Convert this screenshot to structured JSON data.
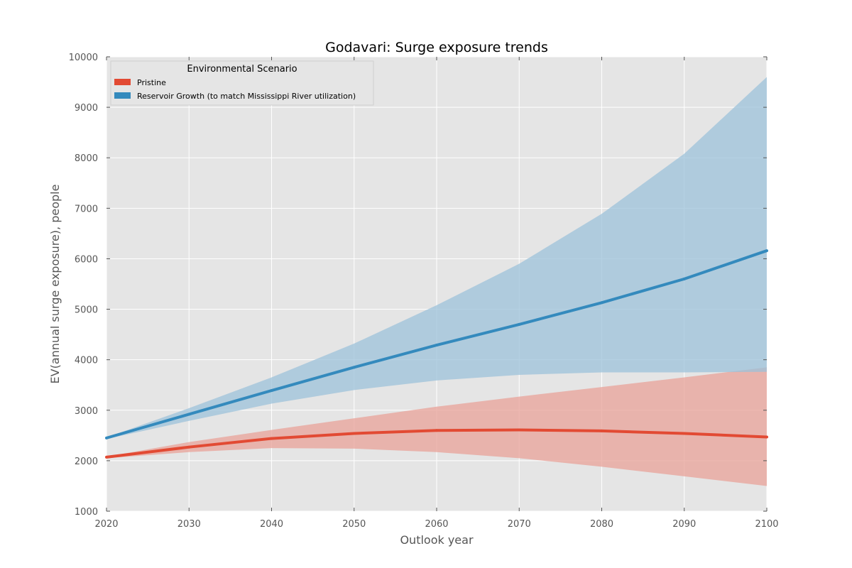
{
  "chart_data": {
    "type": "line",
    "title": "Godavari: Surge exposure trends",
    "xlabel": "Outlook year",
    "ylabel": "EV(annual surge exposure), people",
    "xlim": [
      2020,
      2100
    ],
    "ylim": [
      1000,
      10000
    ],
    "xticks": [
      2020,
      2030,
      2040,
      2050,
      2060,
      2070,
      2080,
      2090,
      2100
    ],
    "yticks": [
      1000,
      2000,
      3000,
      4000,
      5000,
      6000,
      7000,
      8000,
      9000,
      10000
    ],
    "grid": true,
    "legend": {
      "title": "Environmental Scenario",
      "placement": "upper-left"
    },
    "x": [
      2020,
      2030,
      2040,
      2050,
      2060,
      2070,
      2080,
      2090,
      2100
    ],
    "series": [
      {
        "name": "Pristine",
        "color": "#e24a33",
        "band_color": "#e8a198",
        "values": [
          2070,
          2270,
          2440,
          2540,
          2600,
          2610,
          2590,
          2540,
          2470
        ],
        "lower": [
          2050,
          2170,
          2250,
          2240,
          2170,
          2050,
          1880,
          1690,
          1500
        ],
        "upper": [
          2080,
          2370,
          2610,
          2840,
          3070,
          3270,
          3460,
          3650,
          3850
        ]
      },
      {
        "name": "Reservoir Growth (to match Mississippi River utilization)",
        "color": "#348abd",
        "band_color": "#9cc2da",
        "values": [
          2450,
          2920,
          3390,
          3850,
          4290,
          4700,
          5130,
          5600,
          6160
        ],
        "lower": [
          2430,
          2790,
          3130,
          3400,
          3590,
          3700,
          3750,
          3750,
          3760
        ],
        "upper": [
          2460,
          3040,
          3650,
          4320,
          5080,
          5900,
          6890,
          8080,
          9600
        ]
      }
    ]
  }
}
